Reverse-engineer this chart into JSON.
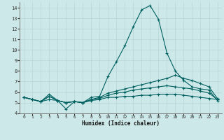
{
  "xlabel": "Humidex (Indice chaleur)",
  "xlim": [
    -0.5,
    23.5
  ],
  "ylim": [
    4,
    14.5
  ],
  "yticks": [
    4,
    5,
    6,
    7,
    8,
    9,
    10,
    11,
    12,
    13,
    14
  ],
  "xticks": [
    0,
    1,
    2,
    3,
    4,
    5,
    6,
    7,
    8,
    9,
    10,
    11,
    12,
    13,
    14,
    15,
    16,
    17,
    18,
    19,
    20,
    21,
    22,
    23
  ],
  "background_color": "#cde8e8",
  "grid_color": "#b8d4d4",
  "line_color": "#006060",
  "lines": [
    [
      5.5,
      5.3,
      5.1,
      5.8,
      5.2,
      4.4,
      5.1,
      5.0,
      5.5,
      5.6,
      7.5,
      8.9,
      10.4,
      12.2,
      13.8,
      14.2,
      12.9,
      9.7,
      8.0,
      7.1,
      6.5,
      6.3,
      6.2,
      5.2
    ],
    [
      5.5,
      5.3,
      5.1,
      5.6,
      5.2,
      5.0,
      5.1,
      5.0,
      5.3,
      5.5,
      5.9,
      6.1,
      6.3,
      6.5,
      6.7,
      6.9,
      7.1,
      7.3,
      7.6,
      7.3,
      7.1,
      6.8,
      6.5,
      5.4
    ],
    [
      5.5,
      5.3,
      5.1,
      5.3,
      5.2,
      5.0,
      5.1,
      5.0,
      5.2,
      5.3,
      5.5,
      5.5,
      5.6,
      5.6,
      5.7,
      5.7,
      5.8,
      5.8,
      5.8,
      5.7,
      5.6,
      5.5,
      5.4,
      5.3
    ],
    [
      5.5,
      5.3,
      5.1,
      5.6,
      5.2,
      5.0,
      5.1,
      5.0,
      5.3,
      5.4,
      5.7,
      5.9,
      6.0,
      6.2,
      6.3,
      6.4,
      6.5,
      6.6,
      6.5,
      6.4,
      6.3,
      6.1,
      5.9,
      5.3
    ]
  ]
}
